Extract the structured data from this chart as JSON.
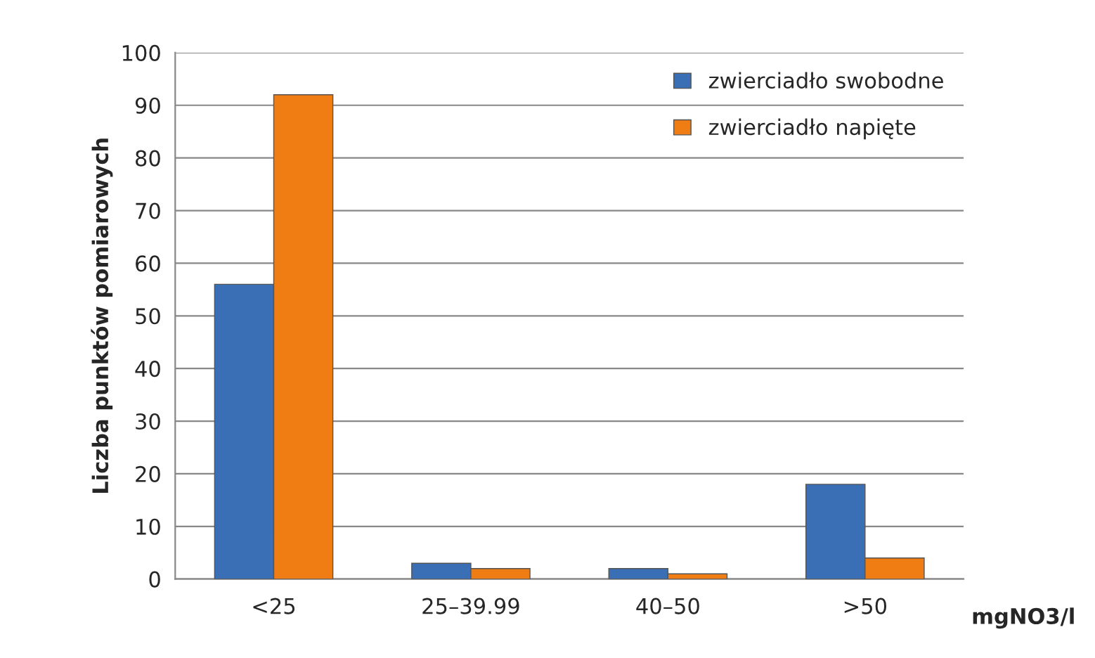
{
  "chart_data": {
    "type": "bar",
    "categories": [
      "<25",
      "25–39.99",
      "40–50",
      ">50"
    ],
    "series": [
      {
        "name": "zwierciadło swobodne",
        "color": "#3a6eb5",
        "values": [
          56,
          3,
          2,
          18
        ]
      },
      {
        "name": "zwierciadło napięte",
        "color": "#f07d14",
        "values": [
          92,
          2,
          1,
          4
        ]
      }
    ],
    "xlabel": "mgNO3/l",
    "ylabel": "Liczba punktów pomiarowych",
    "ylim": [
      0,
      100
    ],
    "yticks": [
      0,
      10,
      20,
      30,
      40,
      50,
      60,
      70,
      80,
      90,
      100
    ],
    "grid": "y",
    "legend": "top right"
  }
}
